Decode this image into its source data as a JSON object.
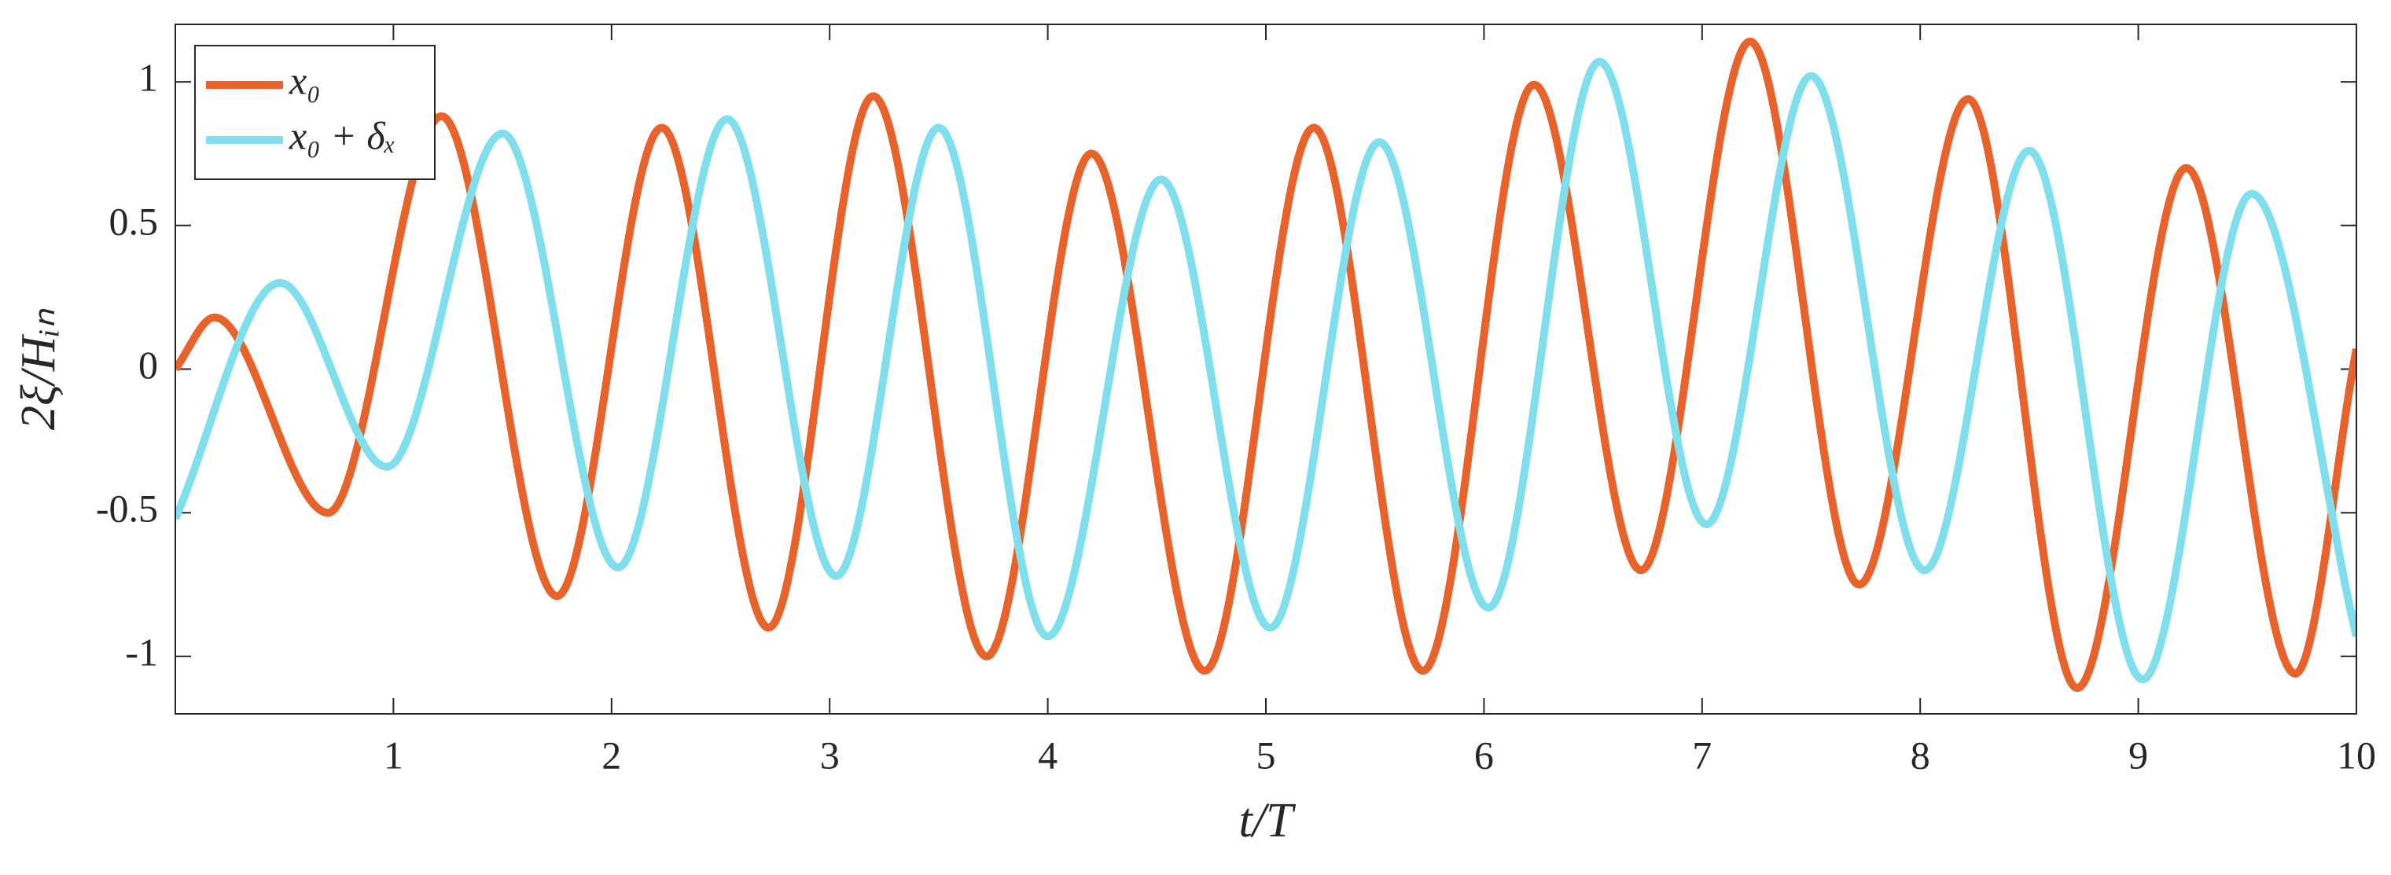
{
  "chart_data": {
    "type": "line",
    "xlabel": "t/T",
    "ylabel": "2ξ/Hᵢₙ",
    "xlim": [
      0,
      10
    ],
    "xticks": [
      1,
      2,
      3,
      4,
      5,
      6,
      7,
      8,
      9,
      10
    ],
    "ylim": [
      -1.2,
      1.2
    ],
    "yticks": [
      -1,
      -0.5,
      0,
      0.5,
      1
    ],
    "grid": false,
    "legend": "upper left",
    "series": [
      {
        "name": "x₀",
        "color": "#e8622a",
        "x": [
          0,
          0.18,
          0.7,
          1.22,
          1.75,
          2.23,
          2.72,
          3.2,
          3.72,
          4.2,
          4.72,
          5.22,
          5.72,
          6.23,
          6.72,
          7.22,
          7.72,
          8.22,
          8.72,
          9.22,
          9.72,
          10
        ],
        "values": [
          0,
          0.18,
          -0.5,
          0.88,
          -0.79,
          0.84,
          -0.9,
          0.95,
          -1.0,
          0.75,
          -1.05,
          0.84,
          -1.05,
          0.99,
          -0.7,
          1.14,
          -0.75,
          0.94,
          -1.11,
          0.7,
          -1.06,
          0.07
        ]
      },
      {
        "name": "x₀ + δₓ",
        "color": "#7fdfec",
        "x": [
          0,
          0.48,
          0.97,
          1.5,
          2.03,
          2.53,
          3.03,
          3.5,
          4.0,
          4.52,
          5.02,
          5.52,
          6.02,
          6.53,
          7.02,
          7.5,
          8.02,
          8.5,
          9.02,
          9.52,
          10
        ],
        "values": [
          -0.52,
          0.3,
          -0.34,
          0.82,
          -0.69,
          0.87,
          -0.72,
          0.84,
          -0.93,
          0.66,
          -0.9,
          0.79,
          -0.83,
          1.07,
          -0.54,
          1.02,
          -0.7,
          0.76,
          -1.08,
          0.61,
          -0.93
        ]
      }
    ]
  }
}
